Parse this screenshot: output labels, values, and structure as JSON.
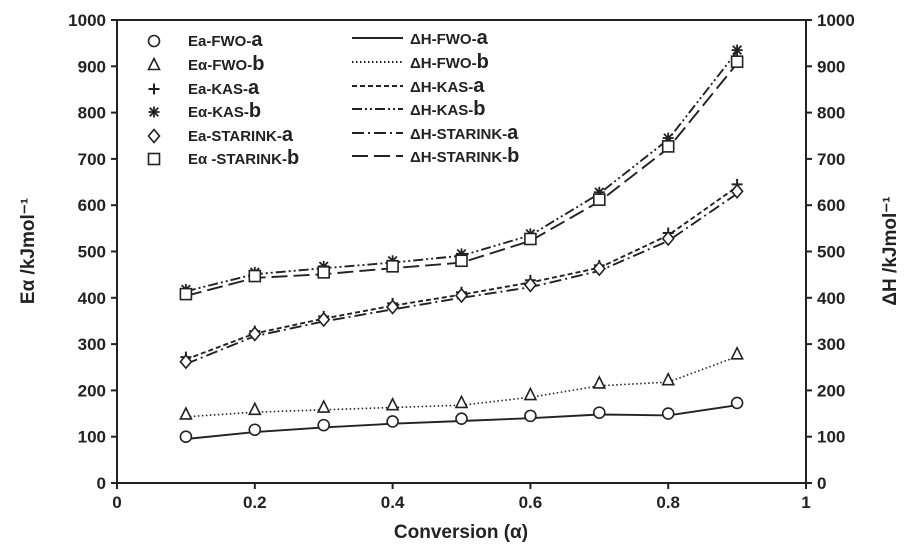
{
  "chart_data": {
    "type": "line",
    "x": [
      0.1,
      0.2,
      0.3,
      0.4,
      0.5,
      0.6,
      0.7,
      0.8,
      0.9
    ],
    "xlabel": "Conversion (α)",
    "ylabel_left": "Eα /kJmol⁻¹",
    "ylabel_right": "ΔH /kJmol⁻¹",
    "xlim": [
      0,
      1
    ],
    "ylim": [
      0,
      1000
    ],
    "x_ticks": [
      "0",
      "0.2",
      "0.4",
      "0.6",
      "0.8",
      "1"
    ],
    "x_tick_values": [
      0,
      0.2,
      0.4,
      0.6,
      0.8,
      1
    ],
    "y_ticks": [
      "0",
      "100",
      "200",
      "300",
      "400",
      "500",
      "600",
      "700",
      "800",
      "900",
      "1000"
    ],
    "y_tick_values": [
      0,
      100,
      200,
      300,
      400,
      500,
      600,
      700,
      800,
      900,
      1000
    ],
    "grid": false,
    "legend_placement": "top-left",
    "series": [
      {
        "name": "Ea-FWO-a",
        "kind": "marker",
        "marker": "circle",
        "values": [
          100,
          115,
          125,
          133,
          139,
          145,
          152,
          150,
          173
        ]
      },
      {
        "name": "Eα-FWO-b",
        "kind": "marker",
        "marker": "triangle",
        "values": [
          148,
          158,
          163,
          168,
          173,
          190,
          215,
          222,
          278
        ]
      },
      {
        "name": "Ea-KAS-a",
        "kind": "marker",
        "marker": "plus",
        "values": [
          272,
          328,
          360,
          388,
          412,
          438,
          470,
          540,
          645
        ]
      },
      {
        "name": "Eα-KAS-b",
        "kind": "marker",
        "marker": "asterisk",
        "values": [
          418,
          455,
          468,
          480,
          495,
          538,
          628,
          745,
          935
        ]
      },
      {
        "name": "Ea-STARINK-a",
        "kind": "marker",
        "marker": "diamond",
        "values": [
          262,
          322,
          353,
          380,
          405,
          428,
          463,
          528,
          630
        ]
      },
      {
        "name": "Eα -STARINK-b",
        "kind": "marker",
        "marker": "square",
        "values": [
          408,
          447,
          455,
          468,
          480,
          527,
          612,
          727,
          910
        ]
      },
      {
        "name": "ΔH-FWO-a",
        "kind": "line",
        "dash": "solid",
        "values": [
          95,
          110,
          120,
          128,
          134,
          140,
          148,
          146,
          168
        ]
      },
      {
        "name": "ΔH-FWO-b",
        "kind": "line",
        "dash": "dotted",
        "values": [
          143,
          153,
          158,
          163,
          168,
          185,
          210,
          218,
          273
        ]
      },
      {
        "name": "ΔH-KAS-a",
        "kind": "line",
        "dash": "short-dash",
        "values": [
          267,
          323,
          355,
          383,
          407,
          433,
          465,
          535,
          640
        ]
      },
      {
        "name": "ΔH-KAS-b",
        "kind": "line",
        "dash": "dash-dot-dot",
        "values": [
          414,
          451,
          464,
          476,
          491,
          535,
          625,
          742,
          932
        ]
      },
      {
        "name": "ΔH-STARINK-a",
        "kind": "line",
        "dash": "dash-dot",
        "values": [
          257,
          317,
          349,
          375,
          400,
          423,
          458,
          523,
          625
        ]
      },
      {
        "name": "ΔH-STARINK-b",
        "kind": "line",
        "dash": "long-dash",
        "values": [
          404,
          443,
          451,
          464,
          476,
          523,
          608,
          723,
          906
        ]
      }
    ],
    "legend_markers": {
      "entries": [
        {
          "label_main": "Ea-FWO-",
          "label_suffix": "a"
        },
        {
          "label_main": "Eα-FWO-",
          "label_suffix": "b"
        },
        {
          "label_main": "Ea-KAS-",
          "label_suffix": "a"
        },
        {
          "label_main": "Eα-KAS-",
          "label_suffix": "b"
        },
        {
          "label_main": "Ea-STARINK-",
          "label_suffix": "a"
        },
        {
          "label_main": "Eα -STARINK-",
          "label_suffix": "b"
        }
      ]
    },
    "legend_lines": {
      "entries": [
        {
          "label_main": "ΔH-FWO-",
          "label_suffix": "a"
        },
        {
          "label_main": "ΔH-FWO-",
          "label_suffix": "b"
        },
        {
          "label_main": "ΔH-KAS-",
          "label_suffix": "a"
        },
        {
          "label_main": "ΔH-KAS-",
          "label_suffix": "b"
        },
        {
          "label_main": "ΔH-STARINK-",
          "label_suffix": "a"
        },
        {
          "label_main": "ΔH-STARINK-",
          "label_suffix": "b"
        }
      ]
    },
    "colors": {
      "ink": "#222222",
      "background": "#ffffff"
    }
  }
}
